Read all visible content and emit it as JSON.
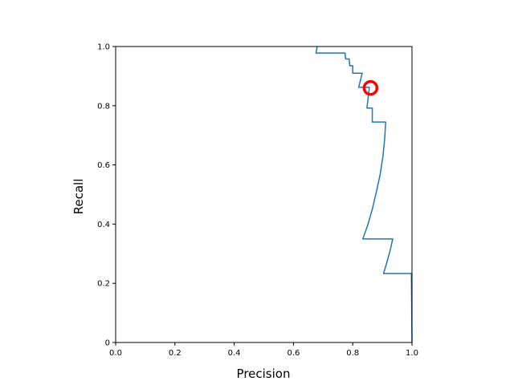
{
  "chart_data": {
    "type": "line",
    "xlabel": "Precision",
    "ylabel": "Recall",
    "xlim": [
      0,
      1
    ],
    "ylim": [
      0,
      1
    ],
    "x_ticks": [
      "0.0",
      "0.2",
      "0.4",
      "0.6",
      "0.8",
      "1.0"
    ],
    "y_ticks": [
      "0",
      "0.2",
      "0.4",
      "0.6",
      "0.8",
      "1.0"
    ],
    "grid": false,
    "series": [
      {
        "color": "#1f77b4",
        "points": [
          [
            0.68,
            1.0
          ],
          [
            0.676,
            0.978
          ],
          [
            0.774,
            0.978
          ],
          [
            0.776,
            0.958
          ],
          [
            0.788,
            0.958
          ],
          [
            0.79,
            0.935
          ],
          [
            0.8,
            0.935
          ],
          [
            0.8,
            0.91
          ],
          [
            0.832,
            0.91
          ],
          [
            0.82,
            0.862
          ],
          [
            0.856,
            0.862
          ],
          [
            0.848,
            0.792
          ],
          [
            0.866,
            0.792
          ],
          [
            0.866,
            0.745
          ],
          [
            0.911,
            0.745
          ],
          [
            0.908,
            0.69
          ],
          [
            0.902,
            0.63
          ],
          [
            0.893,
            0.57
          ],
          [
            0.88,
            0.51
          ],
          [
            0.866,
            0.45
          ],
          [
            0.85,
            0.395
          ],
          [
            0.834,
            0.35
          ],
          [
            0.935,
            0.35
          ],
          [
            0.926,
            0.31
          ],
          [
            0.915,
            0.27
          ],
          [
            0.904,
            0.233
          ],
          [
            0.998,
            0.233
          ],
          [
            1.0,
            0.0
          ]
        ]
      }
    ],
    "highlight_marker": {
      "x": 0.86,
      "y": 0.86,
      "shape": "circle",
      "color": "#ff0000"
    }
  }
}
